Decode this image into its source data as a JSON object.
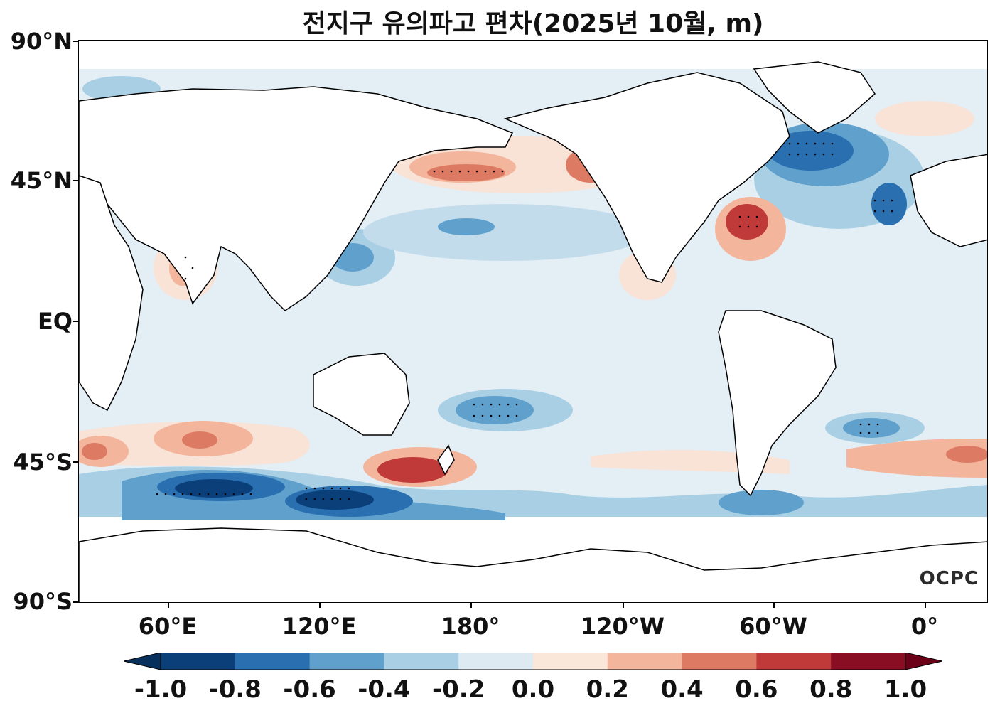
{
  "title": "전지구 유의파고 편차(2025년 10월, m)",
  "watermark": "OCPC",
  "lat_labels": [
    "90°N",
    "45°N",
    "EQ",
    "45°S",
    "90°S"
  ],
  "lon_labels": [
    "60°E",
    "120°E",
    "180°",
    "120°W",
    "60°W",
    "0°"
  ],
  "colorbar": {
    "ticks": [
      "-1.0",
      "-0.8",
      "-0.6",
      "-0.4",
      "-0.2",
      "0.0",
      "0.2",
      "0.4",
      "0.6",
      "0.8",
      "1.0"
    ],
    "colors": [
      "#0b3f7a",
      "#2a6fb0",
      "#5fa0cc",
      "#a9cfe4",
      "#deeaf2",
      "#fbe6da",
      "#f3b59b",
      "#dd7a63",
      "#c03a3a",
      "#8a0e23"
    ],
    "under_color": "#08305c",
    "over_color": "#6b0019"
  },
  "legend_palette": {
    "strong_negative": "#1b5a98",
    "negative": "#6aa8d0",
    "weak_negative": "#c3dcec",
    "near_zero": "#e5eff5",
    "weak_positive": "#f9e2d6",
    "positive": "#f0ab92",
    "strong_positive": "#cf4f45",
    "land": "#ffffff",
    "coastline": "#000000"
  }
}
